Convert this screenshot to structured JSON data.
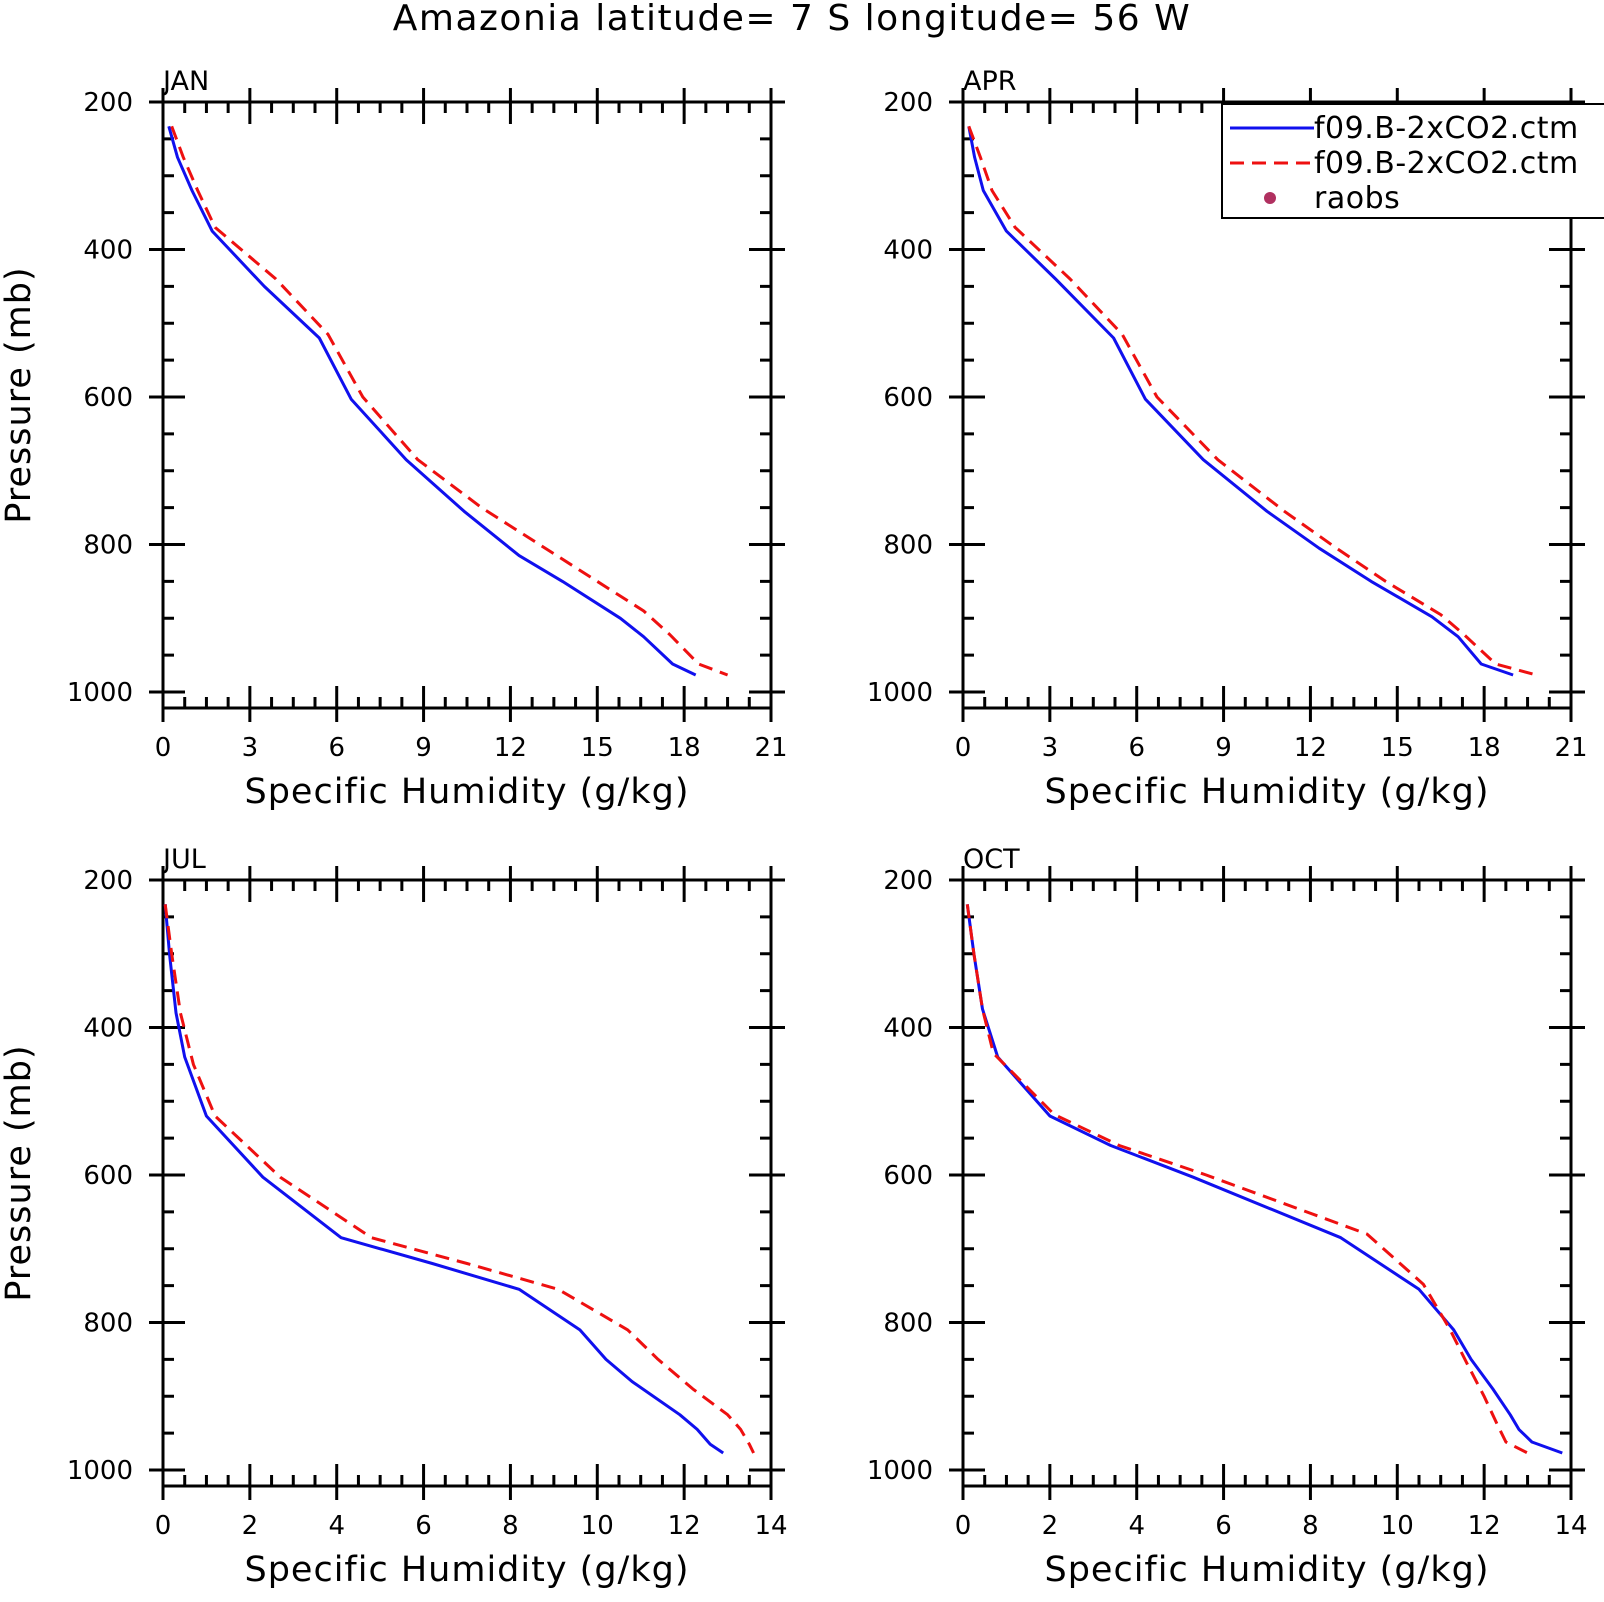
{
  "title": "Amazonia  latitude= 7 S longitude= 56 W",
  "colors": {
    "series1": "#1010ee",
    "series2": "#ee1010",
    "raobs": "#b03060",
    "axis": "#000000"
  },
  "legend": {
    "placement": "top-right (APR panel)",
    "entries": [
      {
        "label": "f09.B-2xCO2.ctm",
        "style": "solid",
        "color": "#1010ee"
      },
      {
        "label": "f09.B-2xCO2.ctm",
        "style": "dashed",
        "color": "#ee1010"
      },
      {
        "label": "raobs",
        "style": "dot",
        "color": "#b03060"
      }
    ]
  },
  "chart_data": [
    {
      "type": "line",
      "panel": "JAN",
      "xlabel": "Specific Humidity (g/kg)",
      "ylabel": "Pressure (mb)",
      "xlim": [
        0,
        21
      ],
      "ylim": [
        1000,
        200
      ],
      "y_inverted": true,
      "xticks": [
        "0",
        "3",
        "6",
        "9",
        "12",
        "15",
        "18",
        "21"
      ],
      "yticks": [
        "200",
        "400",
        "600",
        "800",
        "1000"
      ],
      "series": [
        {
          "values": [
            [
              0.2,
              233
            ],
            [
              0.5,
              275
            ],
            [
              1.0,
              320
            ],
            [
              1.7,
              375
            ],
            [
              3.5,
              450
            ],
            [
              5.4,
              520
            ],
            [
              6.5,
              603
            ],
            [
              8.4,
              685
            ],
            [
              10.4,
              755
            ],
            [
              12.3,
              815
            ],
            [
              13.8,
              850
            ],
            [
              15.8,
              900
            ],
            [
              16.6,
              925
            ],
            [
              17.6,
              962
            ],
            [
              18.4,
              977
            ]
          ]
        },
        {
          "values": [
            [
              0.3,
              233
            ],
            [
              0.7,
              275
            ],
            [
              1.2,
              320
            ],
            [
              1.8,
              370
            ],
            [
              3.9,
              440
            ],
            [
              5.7,
              515
            ],
            [
              6.9,
              600
            ],
            [
              8.8,
              685
            ],
            [
              11.0,
              750
            ],
            [
              13.0,
              800
            ],
            [
              15.0,
              850
            ],
            [
              16.6,
              890
            ],
            [
              17.5,
              922
            ],
            [
              18.5,
              962
            ],
            [
              19.5,
              977
            ]
          ]
        }
      ]
    },
    {
      "type": "line",
      "panel": "APR",
      "xlabel": "Specific Humidity (g/kg)",
      "ylabel": "",
      "xlim": [
        0,
        21
      ],
      "ylim": [
        1000,
        200
      ],
      "y_inverted": true,
      "xticks": [
        "0",
        "3",
        "6",
        "9",
        "12",
        "15",
        "18",
        "21"
      ],
      "yticks": [
        "200",
        "400",
        "600",
        "800",
        "1000"
      ],
      "series": [
        {
          "values": [
            [
              0.2,
              233
            ],
            [
              0.4,
              275
            ],
            [
              0.7,
              320
            ],
            [
              1.5,
              375
            ],
            [
              3.2,
              440
            ],
            [
              5.2,
              520
            ],
            [
              6.3,
              603
            ],
            [
              8.3,
              685
            ],
            [
              10.5,
              755
            ],
            [
              12.3,
              805
            ],
            [
              14.1,
              850
            ],
            [
              16.2,
              898
            ],
            [
              17.1,
              925
            ],
            [
              17.9,
              962
            ],
            [
              19.0,
              977
            ]
          ]
        },
        {
          "values": [
            [
              0.2,
              233
            ],
            [
              0.6,
              275
            ],
            [
              1.0,
              320
            ],
            [
              1.8,
              370
            ],
            [
              3.7,
              440
            ],
            [
              5.5,
              515
            ],
            [
              6.7,
              600
            ],
            [
              8.8,
              685
            ],
            [
              11.1,
              755
            ],
            [
              12.9,
              805
            ],
            [
              14.6,
              850
            ],
            [
              16.5,
              895
            ],
            [
              17.3,
              922
            ],
            [
              18.4,
              962
            ],
            [
              19.8,
              977
            ]
          ]
        }
      ]
    },
    {
      "type": "line",
      "panel": "JUL",
      "xlabel": "Specific Humidity (g/kg)",
      "ylabel": "Pressure (mb)",
      "xlim": [
        0,
        14
      ],
      "ylim": [
        1000,
        200
      ],
      "y_inverted": true,
      "xticks": [
        "0",
        "2",
        "4",
        "6",
        "8",
        "10",
        "12",
        "14"
      ],
      "yticks": [
        "200",
        "400",
        "600",
        "800",
        "1000"
      ],
      "series": [
        {
          "values": [
            [
              0.05,
              233
            ],
            [
              0.15,
              300
            ],
            [
              0.3,
              380
            ],
            [
              0.5,
              440
            ],
            [
              1.0,
              520
            ],
            [
              2.3,
              603
            ],
            [
              4.1,
              685
            ],
            [
              6.2,
              720
            ],
            [
              8.2,
              755
            ],
            [
              9.6,
              810
            ],
            [
              10.2,
              850
            ],
            [
              10.8,
              880
            ],
            [
              11.9,
              925
            ],
            [
              12.3,
              945
            ],
            [
              12.6,
              965
            ],
            [
              12.9,
              977
            ]
          ]
        },
        {
          "values": [
            [
              0.05,
              233
            ],
            [
              0.2,
              300
            ],
            [
              0.4,
              380
            ],
            [
              0.7,
              450
            ],
            [
              1.2,
              520
            ],
            [
              2.7,
              603
            ],
            [
              4.8,
              685
            ],
            [
              7.0,
              720
            ],
            [
              9.1,
              755
            ],
            [
              10.7,
              810
            ],
            [
              11.4,
              850
            ],
            [
              12.2,
              890
            ],
            [
              13.0,
              925
            ],
            [
              13.3,
              945
            ],
            [
              13.5,
              965
            ],
            [
              13.6,
              977
            ]
          ]
        }
      ]
    },
    {
      "type": "line",
      "panel": "OCT",
      "xlabel": "Specific Humidity (g/kg)",
      "ylabel": "",
      "xlim": [
        0,
        14
      ],
      "ylim": [
        1000,
        200
      ],
      "y_inverted": true,
      "xticks": [
        "0",
        "2",
        "4",
        "6",
        "8",
        "10",
        "12",
        "14"
      ],
      "yticks": [
        "200",
        "400",
        "600",
        "800",
        "1000"
      ],
      "series": [
        {
          "values": [
            [
              0.1,
              233
            ],
            [
              0.25,
              300
            ],
            [
              0.45,
              375
            ],
            [
              0.8,
              440
            ],
            [
              2.0,
              520
            ],
            [
              3.4,
              560
            ],
            [
              5.3,
              603
            ],
            [
              8.7,
              685
            ],
            [
              10.5,
              755
            ],
            [
              11.3,
              810
            ],
            [
              11.7,
              850
            ],
            [
              12.2,
              890
            ],
            [
              12.6,
              925
            ],
            [
              12.8,
              945
            ],
            [
              13.1,
              962
            ],
            [
              13.8,
              977
            ]
          ]
        },
        {
          "values": [
            [
              0.1,
              233
            ],
            [
              0.25,
              300
            ],
            [
              0.45,
              375
            ],
            [
              0.7,
              435
            ],
            [
              2.1,
              518
            ],
            [
              3.6,
              560
            ],
            [
              5.6,
              600
            ],
            [
              9.3,
              680
            ],
            [
              10.6,
              748
            ],
            [
              11.2,
              808
            ],
            [
              11.6,
              855
            ],
            [
              12.0,
              900
            ],
            [
              12.3,
              938
            ],
            [
              12.5,
              962
            ],
            [
              13.0,
              977
            ]
          ]
        }
      ]
    }
  ]
}
